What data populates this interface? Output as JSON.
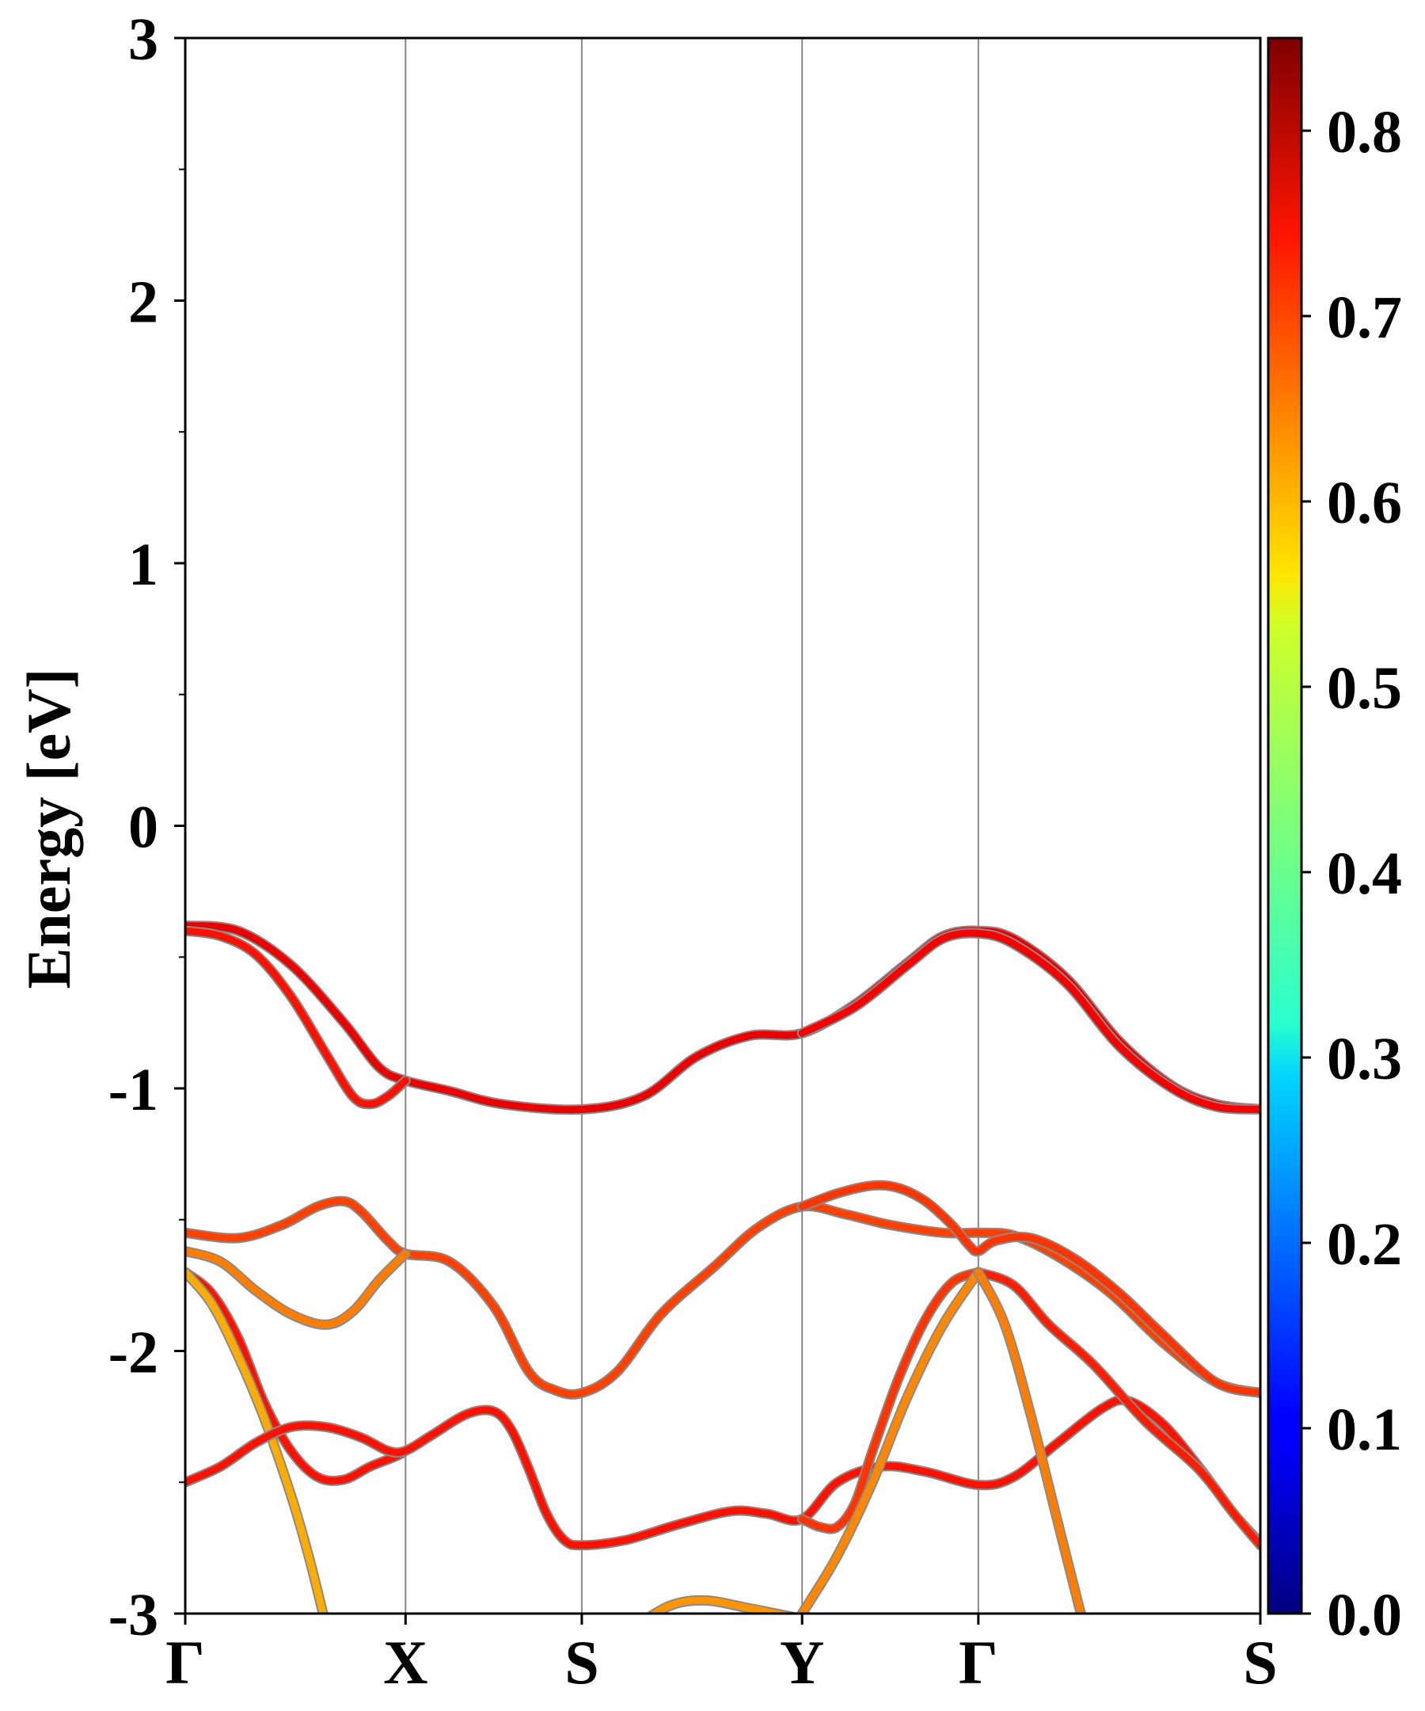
{
  "chart_data": {
    "type": "line",
    "title": "",
    "xlabel": "",
    "ylabel": "Energy [eV]",
    "ylim": [
      -3,
      3
    ],
    "yticks": [
      -3,
      -2,
      -1,
      0,
      1,
      2,
      3
    ],
    "yticks_minor": [
      -2.5,
      -1.5,
      -0.5,
      0.5,
      1.5,
      2.5
    ],
    "xlim": [
      0,
      6.1
    ],
    "kpoints": [
      {
        "label": "Γ",
        "x": 0.0
      },
      {
        "label": "X",
        "x": 1.25
      },
      {
        "label": "S",
        "x": 2.25
      },
      {
        "label": "Y",
        "x": 3.5
      },
      {
        "label": "Γ",
        "x": 4.5
      },
      {
        "label": "S",
        "x": 6.1
      }
    ],
    "grid_vertical_at_kpoints": true,
    "colorbar": {
      "colormap": "jet",
      "range": [
        0.0,
        0.85
      ],
      "ticks": [
        "0.0",
        "0.1",
        "0.2",
        "0.3",
        "0.4",
        "0.5",
        "0.6",
        "0.7",
        "0.8"
      ],
      "tick_values": [
        0.0,
        0.1,
        0.2,
        0.3,
        0.4,
        0.5,
        0.6,
        0.7,
        0.8
      ]
    },
    "series": [
      {
        "w": 0.76,
        "points": [
          [
            0,
            -0.38
          ],
          [
            0.3,
            -0.4
          ],
          [
            0.6,
            -0.53
          ],
          [
            0.9,
            -0.75
          ],
          [
            1.1,
            -0.92
          ],
          [
            1.25,
            -0.97
          ],
          [
            1.5,
            -1.01
          ],
          [
            1.8,
            -1.06
          ],
          [
            2.25,
            -1.08
          ],
          [
            2.6,
            -1.03
          ],
          [
            2.9,
            -0.88
          ],
          [
            3.2,
            -0.8
          ],
          [
            3.5,
            -0.79
          ],
          [
            3.8,
            -0.68
          ],
          [
            4.1,
            -0.52
          ],
          [
            4.3,
            -0.42
          ],
          [
            4.5,
            -0.4
          ],
          [
            4.7,
            -0.43
          ],
          [
            5.0,
            -0.58
          ],
          [
            5.3,
            -0.82
          ],
          [
            5.6,
            -0.99
          ],
          [
            5.85,
            -1.06
          ],
          [
            6.1,
            -1.08
          ]
        ]
      },
      {
        "w": 0.73,
        "points": [
          [
            0,
            -0.4
          ],
          [
            0.2,
            -0.42
          ],
          [
            0.4,
            -0.49
          ],
          [
            0.6,
            -0.65
          ],
          [
            0.8,
            -0.87
          ],
          [
            0.95,
            -1.03
          ],
          [
            1.05,
            -1.06
          ],
          [
            1.15,
            -1.03
          ],
          [
            1.25,
            -0.97
          ]
        ]
      },
      {
        "w": 0.75,
        "points": [
          [
            3.5,
            -0.79
          ],
          [
            3.8,
            -0.69
          ],
          [
            4.1,
            -0.53
          ],
          [
            4.3,
            -0.43
          ],
          [
            4.5,
            -0.41
          ],
          [
            4.7,
            -0.45
          ],
          [
            5.0,
            -0.6
          ],
          [
            5.3,
            -0.84
          ],
          [
            5.6,
            -1.0
          ],
          [
            5.85,
            -1.07
          ],
          [
            6.1,
            -1.08
          ]
        ]
      },
      {
        "w": 0.69,
        "points": [
          [
            0,
            -1.55
          ],
          [
            0.3,
            -1.57
          ],
          [
            0.55,
            -1.52
          ],
          [
            0.75,
            -1.45
          ],
          [
            0.9,
            -1.43
          ],
          [
            1.0,
            -1.47
          ],
          [
            1.15,
            -1.58
          ],
          [
            1.25,
            -1.63
          ],
          [
            1.5,
            -1.66
          ],
          [
            1.75,
            -1.83
          ],
          [
            1.95,
            -2.08
          ],
          [
            2.1,
            -2.15
          ],
          [
            2.25,
            -2.16
          ],
          [
            2.45,
            -2.08
          ],
          [
            2.7,
            -1.86
          ],
          [
            3.0,
            -1.68
          ],
          [
            3.25,
            -1.53
          ],
          [
            3.5,
            -1.45
          ],
          [
            3.75,
            -1.48
          ],
          [
            4.0,
            -1.52
          ],
          [
            4.3,
            -1.55
          ],
          [
            4.5,
            -1.55
          ],
          [
            4.7,
            -1.56
          ],
          [
            4.95,
            -1.64
          ],
          [
            5.25,
            -1.78
          ],
          [
            5.55,
            -1.97
          ],
          [
            5.85,
            -2.12
          ],
          [
            6.1,
            -2.16
          ]
        ]
      },
      {
        "w": 0.7,
        "points": [
          [
            3.5,
            -1.45
          ],
          [
            3.7,
            -1.4
          ],
          [
            3.9,
            -1.37
          ],
          [
            4.05,
            -1.38
          ],
          [
            4.2,
            -1.43
          ],
          [
            4.35,
            -1.52
          ],
          [
            4.45,
            -1.6
          ],
          [
            4.5,
            -1.62
          ],
          [
            4.6,
            -1.58
          ],
          [
            4.8,
            -1.57
          ],
          [
            5.05,
            -1.65
          ],
          [
            5.3,
            -1.78
          ],
          [
            5.55,
            -1.94
          ],
          [
            5.85,
            -2.12
          ],
          [
            6.1,
            -2.16
          ]
        ]
      },
      {
        "w": 0.64,
        "points": [
          [
            0,
            -1.62
          ],
          [
            0.2,
            -1.66
          ],
          [
            0.4,
            -1.77
          ],
          [
            0.6,
            -1.86
          ],
          [
            0.8,
            -1.9
          ],
          [
            0.95,
            -1.85
          ],
          [
            1.1,
            -1.73
          ],
          [
            1.25,
            -1.63
          ]
        ]
      },
      {
        "w": 0.73,
        "points": [
          [
            0,
            -1.7
          ],
          [
            0.15,
            -1.78
          ],
          [
            0.3,
            -1.95
          ],
          [
            0.45,
            -2.2
          ],
          [
            0.6,
            -2.38
          ],
          [
            0.75,
            -2.48
          ],
          [
            0.9,
            -2.49
          ],
          [
            1.05,
            -2.44
          ],
          [
            1.2,
            -2.4
          ],
          [
            1.25,
            -2.38
          ]
        ]
      },
      {
        "w": 0.6,
        "points": [
          [
            0,
            -1.7
          ],
          [
            0.15,
            -1.82
          ],
          [
            0.3,
            -2.02
          ],
          [
            0.45,
            -2.26
          ],
          [
            0.6,
            -2.55
          ],
          [
            0.7,
            -2.78
          ],
          [
            0.8,
            -3.05
          ]
        ]
      },
      {
        "w": 0.73,
        "points": [
          [
            0,
            -2.5
          ],
          [
            0.2,
            -2.44
          ],
          [
            0.4,
            -2.35
          ],
          [
            0.6,
            -2.29
          ],
          [
            0.8,
            -2.29
          ],
          [
            1.0,
            -2.33
          ],
          [
            1.15,
            -2.38
          ],
          [
            1.25,
            -2.38
          ],
          [
            1.4,
            -2.32
          ],
          [
            1.6,
            -2.24
          ],
          [
            1.75,
            -2.23
          ],
          [
            1.85,
            -2.3
          ],
          [
            1.95,
            -2.45
          ],
          [
            2.05,
            -2.62
          ],
          [
            2.15,
            -2.72
          ],
          [
            2.25,
            -2.74
          ],
          [
            2.5,
            -2.72
          ],
          [
            2.8,
            -2.66
          ],
          [
            3.1,
            -2.61
          ],
          [
            3.3,
            -2.62
          ],
          [
            3.5,
            -2.64
          ],
          [
            3.7,
            -2.5
          ],
          [
            3.95,
            -2.44
          ],
          [
            4.2,
            -2.46
          ],
          [
            4.5,
            -2.51
          ],
          [
            4.7,
            -2.48
          ],
          [
            4.95,
            -2.35
          ],
          [
            5.2,
            -2.22
          ],
          [
            5.35,
            -2.19
          ],
          [
            5.55,
            -2.28
          ],
          [
            5.75,
            -2.44
          ],
          [
            5.95,
            -2.62
          ],
          [
            6.1,
            -2.73
          ]
        ]
      },
      {
        "w": 0.7,
        "points": [
          [
            3.5,
            -2.64
          ],
          [
            3.6,
            -2.67
          ],
          [
            3.7,
            -2.67
          ],
          [
            3.8,
            -2.58
          ],
          [
            3.9,
            -2.38
          ],
          [
            4.05,
            -2.1
          ],
          [
            4.2,
            -1.88
          ],
          [
            4.35,
            -1.74
          ],
          [
            4.5,
            -1.7
          ]
        ]
      },
      {
        "w": 0.63,
        "points": [
          [
            3.5,
            -3.0
          ],
          [
            3.7,
            -2.78
          ],
          [
            3.9,
            -2.5
          ],
          [
            4.1,
            -2.17
          ],
          [
            4.3,
            -1.9
          ],
          [
            4.5,
            -1.7
          ]
        ]
      },
      {
        "w": 0.72,
        "points": [
          [
            4.5,
            -1.7
          ],
          [
            4.7,
            -1.75
          ],
          [
            4.9,
            -1.9
          ],
          [
            5.15,
            -2.05
          ],
          [
            5.45,
            -2.27
          ],
          [
            5.75,
            -2.45
          ],
          [
            5.95,
            -2.62
          ],
          [
            6.1,
            -2.74
          ]
        ]
      },
      {
        "w": 0.64,
        "points": [
          [
            4.5,
            -1.7
          ],
          [
            4.65,
            -1.9
          ],
          [
            4.8,
            -2.25
          ],
          [
            4.95,
            -2.65
          ],
          [
            5.1,
            -3.05
          ]
        ]
      },
      {
        "w": 0.62,
        "points": [
          [
            2.55,
            -3.05
          ],
          [
            2.75,
            -2.97
          ],
          [
            2.95,
            -2.95
          ],
          [
            3.2,
            -2.98
          ],
          [
            3.5,
            -3.02
          ]
        ]
      }
    ]
  }
}
